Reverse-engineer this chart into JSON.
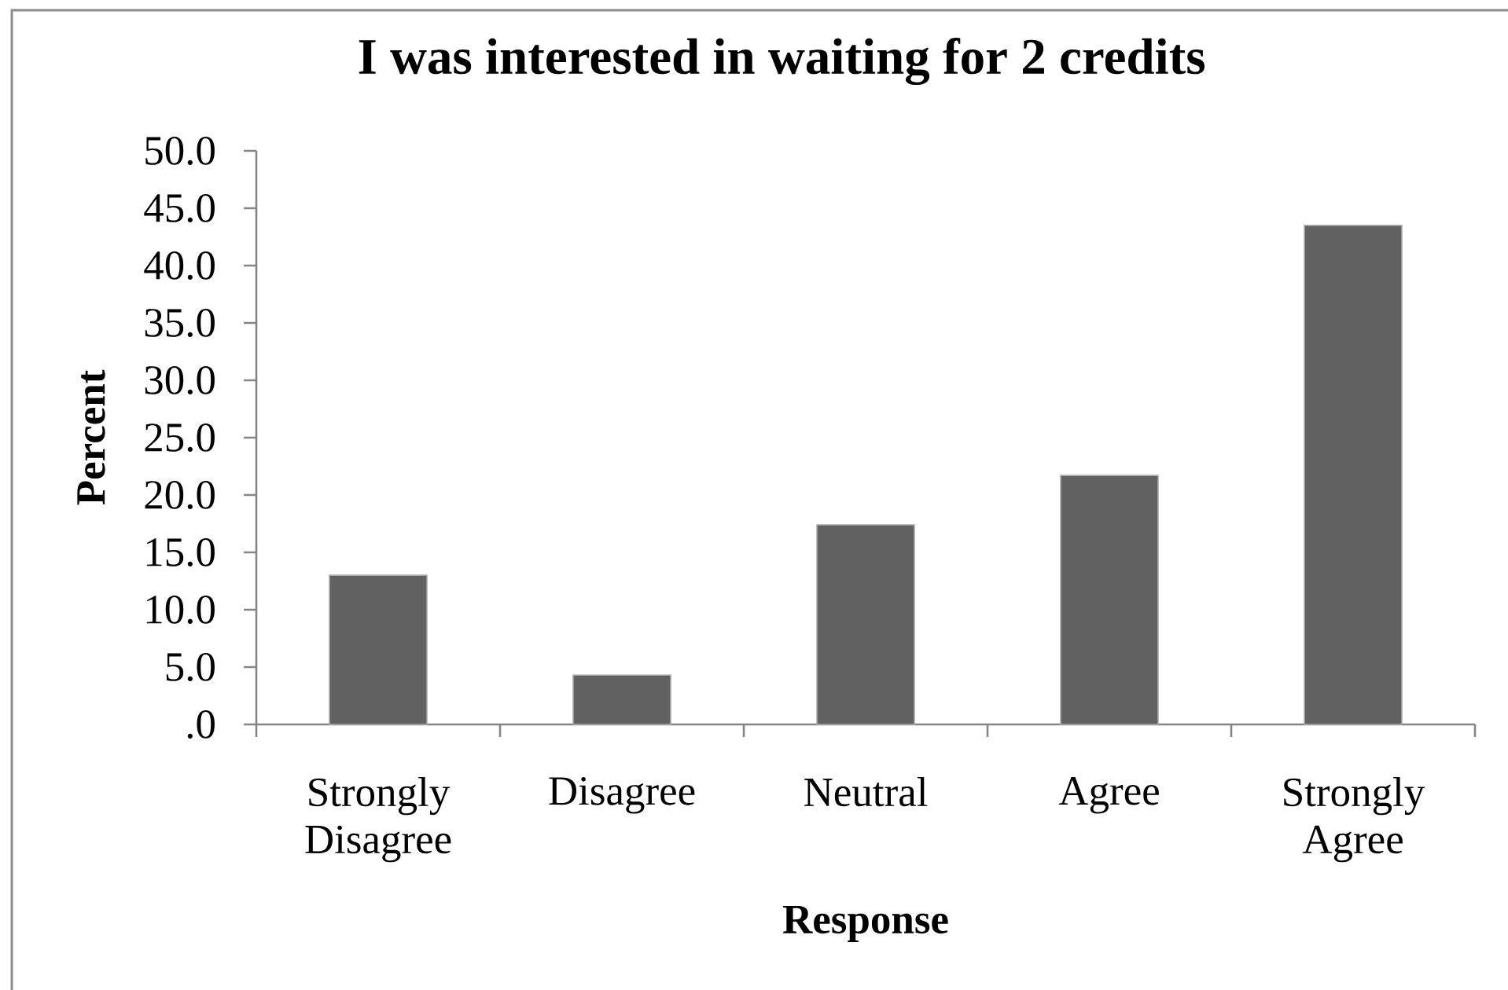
{
  "chart_data": {
    "type": "bar",
    "title": "I was interested in waiting for 2 credits",
    "xlabel": "Response",
    "ylabel": "Percent",
    "categories": [
      "Strongly Disagree",
      "Disagree",
      "Neutral",
      "Agree",
      "Strongly Agree"
    ],
    "values": [
      13.0,
      4.3,
      17.4,
      21.7,
      43.5
    ],
    "color": "#616161",
    "ylim": [
      0,
      50
    ],
    "yticks": [
      {
        "value": 0,
        "label": ".0"
      },
      {
        "value": 5,
        "label": "5.0"
      },
      {
        "value": 10,
        "label": "10.0"
      },
      {
        "value": 15,
        "label": "15.0"
      },
      {
        "value": 20,
        "label": "20.0"
      },
      {
        "value": 25,
        "label": "25.0"
      },
      {
        "value": 30,
        "label": "30.0"
      },
      {
        "value": 35,
        "label": "35.0"
      },
      {
        "value": 40,
        "label": "40.0"
      },
      {
        "value": 45,
        "label": "45.0"
      },
      {
        "value": 50,
        "label": "50.0"
      }
    ]
  }
}
